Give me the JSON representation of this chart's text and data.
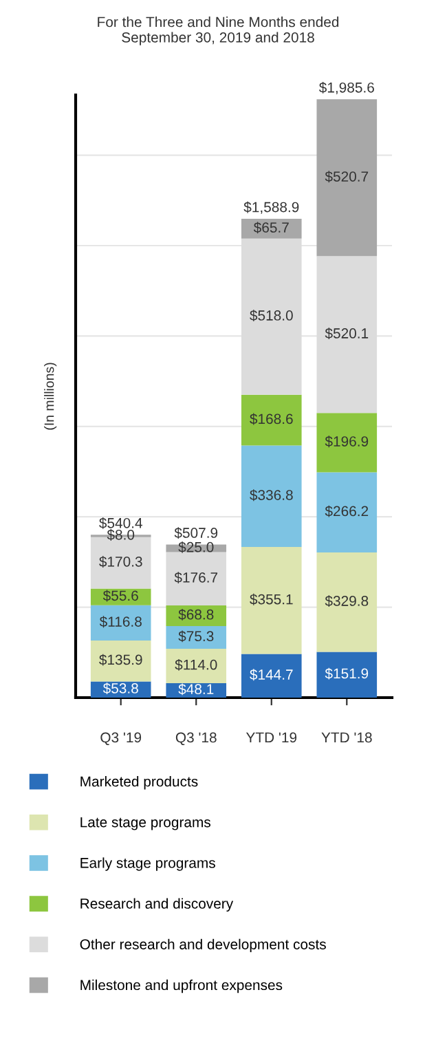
{
  "chart_data": {
    "type": "bar",
    "stacked": true,
    "title": "For the Three and Nine Months ended\nSeptember 30, 2019 and 2018",
    "ylabel": "(In millions)",
    "categories": [
      "Q3 '19",
      "Q3 '18",
      "YTD '19",
      "YTD '18"
    ],
    "series": [
      {
        "name": "Marketed products",
        "color": "#2a6ebb",
        "values": [
          53.8,
          48.1,
          144.7,
          151.9
        ],
        "value_labels": [
          "$53.8",
          "$48.1",
          "$144.7",
          "$151.9"
        ]
      },
      {
        "name": "Late stage programs",
        "color": "#dde5b0",
        "values": [
          135.9,
          114.0,
          355.1,
          329.8
        ],
        "value_labels": [
          "$135.9",
          "$114.0",
          "$355.1",
          "$329.8"
        ]
      },
      {
        "name": "Early stage programs",
        "color": "#7dc3e3",
        "values": [
          116.8,
          75.3,
          336.8,
          266.2
        ],
        "value_labels": [
          "$116.8",
          "$75.3",
          "$336.8",
          "$266.2"
        ]
      },
      {
        "name": "Research and discovery",
        "color": "#8dc63f",
        "values": [
          55.6,
          68.8,
          168.6,
          196.9
        ],
        "value_labels": [
          "$55.6",
          "$68.8",
          "$168.6",
          "$196.9"
        ]
      },
      {
        "name": "Other research and development costs",
        "color": "#dcdcdc",
        "values": [
          170.3,
          176.7,
          518.0,
          520.1
        ],
        "value_labels": [
          "$170.3",
          "$176.7",
          "$518.0",
          "$520.1"
        ]
      },
      {
        "name": "Milestone and upfront expenses",
        "color": "#a8a8a8",
        "values": [
          8.0,
          25.0,
          65.7,
          520.7
        ],
        "value_labels": [
          "$8.0",
          "$25.0",
          "$65.7",
          "$520.7"
        ]
      }
    ],
    "totals": [
      "$540.4",
      "$507.9",
      "$1,588.9",
      "$1,985.6"
    ],
    "ylim": [
      0,
      2000
    ],
    "yticks": [
      {
        "value": 300,
        "label": null
      },
      {
        "value": 600,
        "label": null
      },
      {
        "value": 900,
        "label": null
      },
      {
        "value": 1200,
        "label": null
      },
      {
        "value": 1500,
        "label": null
      },
      {
        "value": 1800,
        "label": null
      }
    ],
    "grid": "y",
    "tick_labels": "x",
    "legend": "bottom"
  }
}
